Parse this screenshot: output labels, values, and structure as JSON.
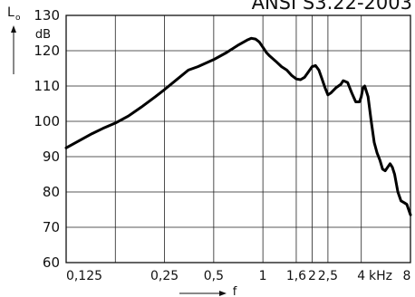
{
  "chart_data": {
    "type": "line",
    "title": "ANSI S3.22-2003",
    "ylabel": "Lo",
    "ylabel_sub": "o",
    "ylabel_main": "L",
    "yunit": "dB",
    "xlabel": "f",
    "xscale": "log",
    "xlim": [
      0.0625,
      8
    ],
    "ylim": [
      60,
      130
    ],
    "grid": true,
    "x_tick_labels": [
      "0,125",
      "0,25",
      "0,5",
      "1",
      "1,6",
      "2",
      "2,5",
      "4",
      "kHz",
      "8"
    ],
    "y_ticks": [
      60,
      70,
      80,
      90,
      100,
      110,
      120,
      130
    ],
    "series": [
      {
        "x": [
          0.0625,
          0.075,
          0.09,
          0.105,
          0.125,
          0.15,
          0.18,
          0.22,
          0.25,
          0.3,
          0.35,
          0.4,
          0.5,
          0.6,
          0.7,
          0.8,
          0.85,
          0.9,
          0.95,
          1.0,
          1.05,
          1.1,
          1.2,
          1.3,
          1.4,
          1.5,
          1.6,
          1.7,
          1.8,
          1.9,
          2.0,
          2.1,
          2.2,
          2.3,
          2.4,
          2.5,
          2.6,
          2.8,
          3.0,
          3.1,
          3.3,
          3.5,
          3.7,
          3.9,
          4.0,
          4.1,
          4.2,
          4.4,
          4.6,
          4.8,
          5.0,
          5.2,
          5.4,
          5.6,
          5.8,
          6.0,
          6.2,
          6.4,
          6.7,
          7.0,
          7.3,
          7.6,
          8.0
        ],
        "y": [
          92.5,
          94.5,
          96.5,
          98,
          99.5,
          101.5,
          104,
          107,
          109,
          112,
          114.5,
          115.5,
          117.5,
          119.5,
          121.5,
          123,
          123.5,
          123.3,
          122.5,
          121,
          119.5,
          118.5,
          117,
          115.5,
          114.5,
          113,
          112,
          111.8,
          112.5,
          114,
          115.5,
          115.8,
          114.5,
          112,
          109.5,
          107.5,
          108,
          109.5,
          110.5,
          111.5,
          111,
          108,
          105.5,
          105.5,
          107,
          109.5,
          110,
          107,
          100,
          94,
          91,
          89,
          86.5,
          86,
          87,
          88,
          87,
          85,
          80,
          77.5,
          77,
          76.5,
          73.5
        ]
      }
    ]
  }
}
